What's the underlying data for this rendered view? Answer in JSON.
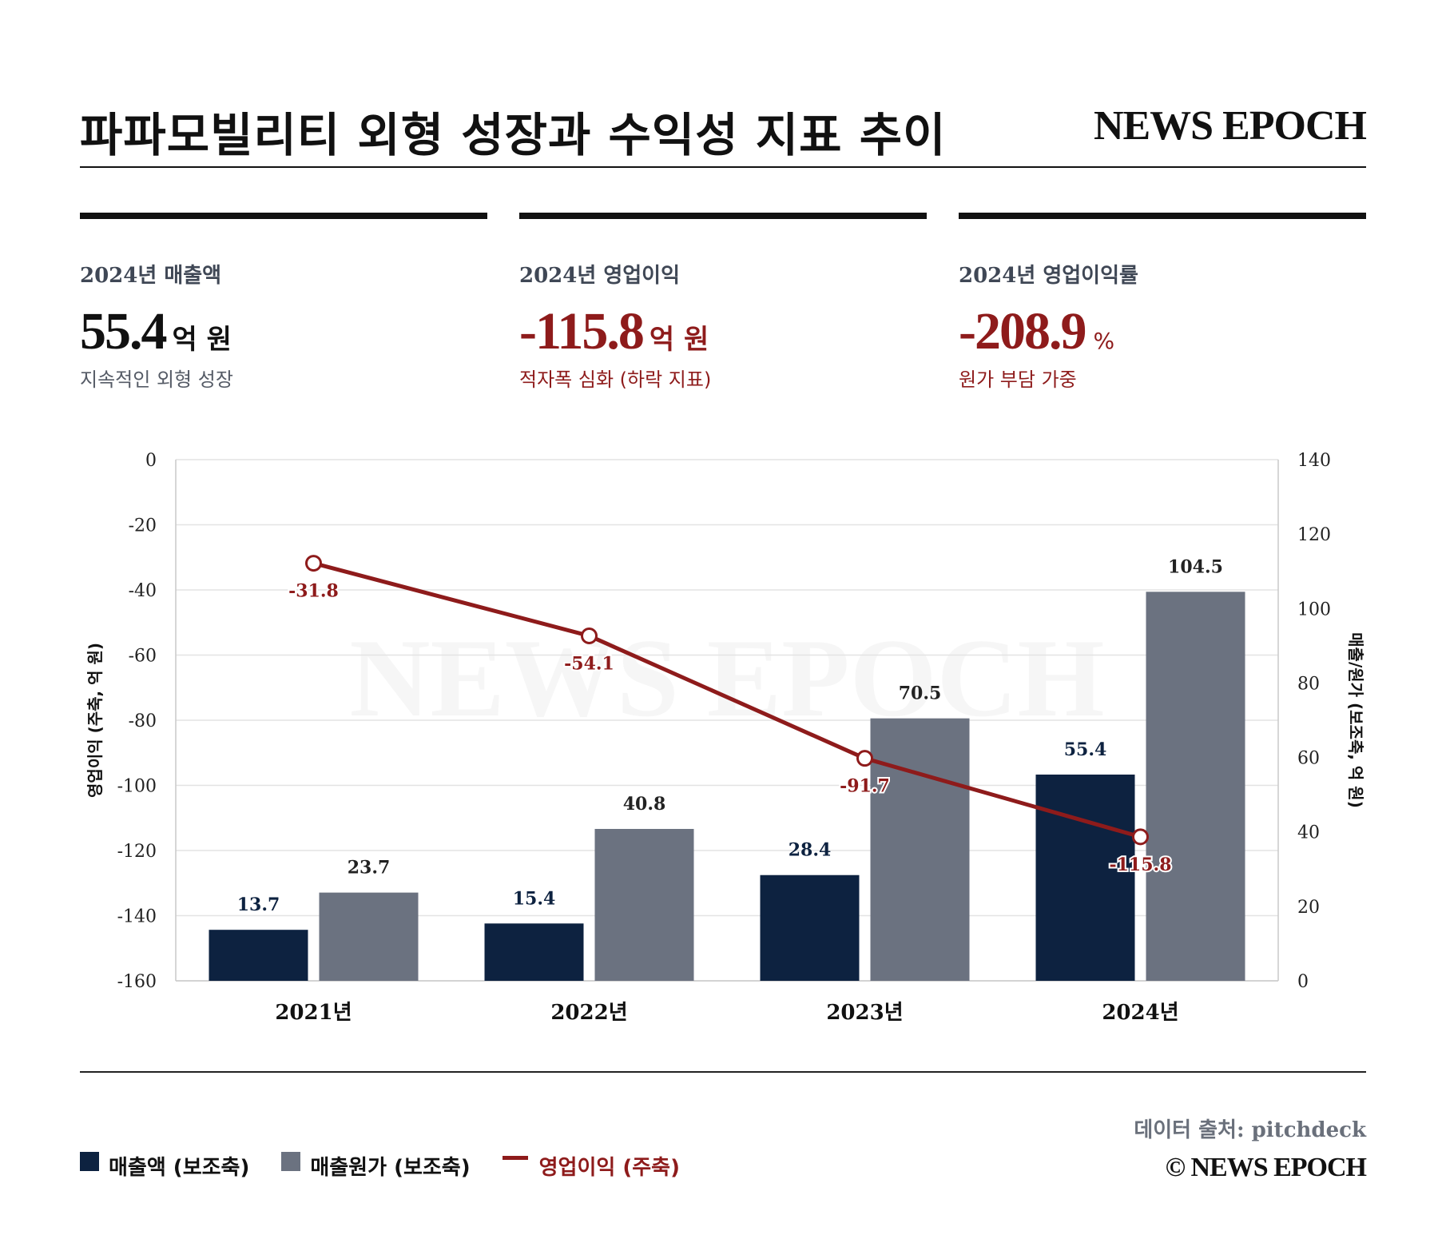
{
  "header": {
    "title": "파파모빌리티 외형 성장과 수익성 지표 추이",
    "brand": "NEWS EPOCH"
  },
  "kpis": [
    {
      "label": "2024년 매출액",
      "value": "55.4",
      "unit": "억 원",
      "sub": "지속적인 외형 성장",
      "tone": "dark"
    },
    {
      "label": "2024년 영업이익",
      "value": "-115.8",
      "unit": "억 원",
      "sub": "적자폭 심화 (하락 지표)",
      "tone": "red"
    },
    {
      "label": "2024년 영업이익률",
      "value": "-208.9",
      "unit": "%",
      "sub": "원가 부담 가중",
      "tone": "red"
    }
  ],
  "colors": {
    "revenue": "#0d2240",
    "cost": "#6b7280",
    "profit": "#8e1b1b",
    "text": "#111111"
  },
  "chart_data": {
    "type": "bar",
    "categories": [
      "2021년",
      "2022년",
      "2023년",
      "2024년"
    ],
    "series": [
      {
        "name": "매출액 (보조축)",
        "type": "bar",
        "axis": "right",
        "values": [
          13.7,
          15.4,
          28.4,
          55.4
        ],
        "labels": [
          "13.7",
          "15.4",
          "28.4",
          "55.4"
        ]
      },
      {
        "name": "매출원가 (보조축)",
        "type": "bar",
        "axis": "right",
        "values": [
          23.7,
          40.8,
          70.5,
          104.5
        ],
        "labels": [
          "23.7",
          "40.8",
          "70.5",
          "104.5"
        ]
      },
      {
        "name": "영업이익 (주축)",
        "type": "line",
        "axis": "left",
        "values": [
          -31.8,
          -54.1,
          -91.7,
          -115.8
        ],
        "labels": [
          "-31.8",
          "-54.1",
          "-91.7",
          "-115.8"
        ]
      }
    ],
    "ylabel": "영업이익 (주축, 억 원)",
    "y2label": "매출/원가 (보조축, 억 원)",
    "ylim": [
      -160,
      0
    ],
    "y2lim": [
      0,
      140
    ],
    "yticks": [
      "0",
      "-20",
      "-40",
      "-60",
      "-80",
      "-100",
      "-120",
      "-140",
      "-160"
    ],
    "y2ticks": [
      "140",
      "120",
      "100",
      "80",
      "60",
      "40",
      "20",
      "0"
    ],
    "watermark": "NEWS EPOCH",
    "grid": true,
    "legend_position": "bottom-left"
  },
  "footer": {
    "source": "데이터 출처: pitchdeck",
    "copyright": "© NEWS EPOCH"
  }
}
